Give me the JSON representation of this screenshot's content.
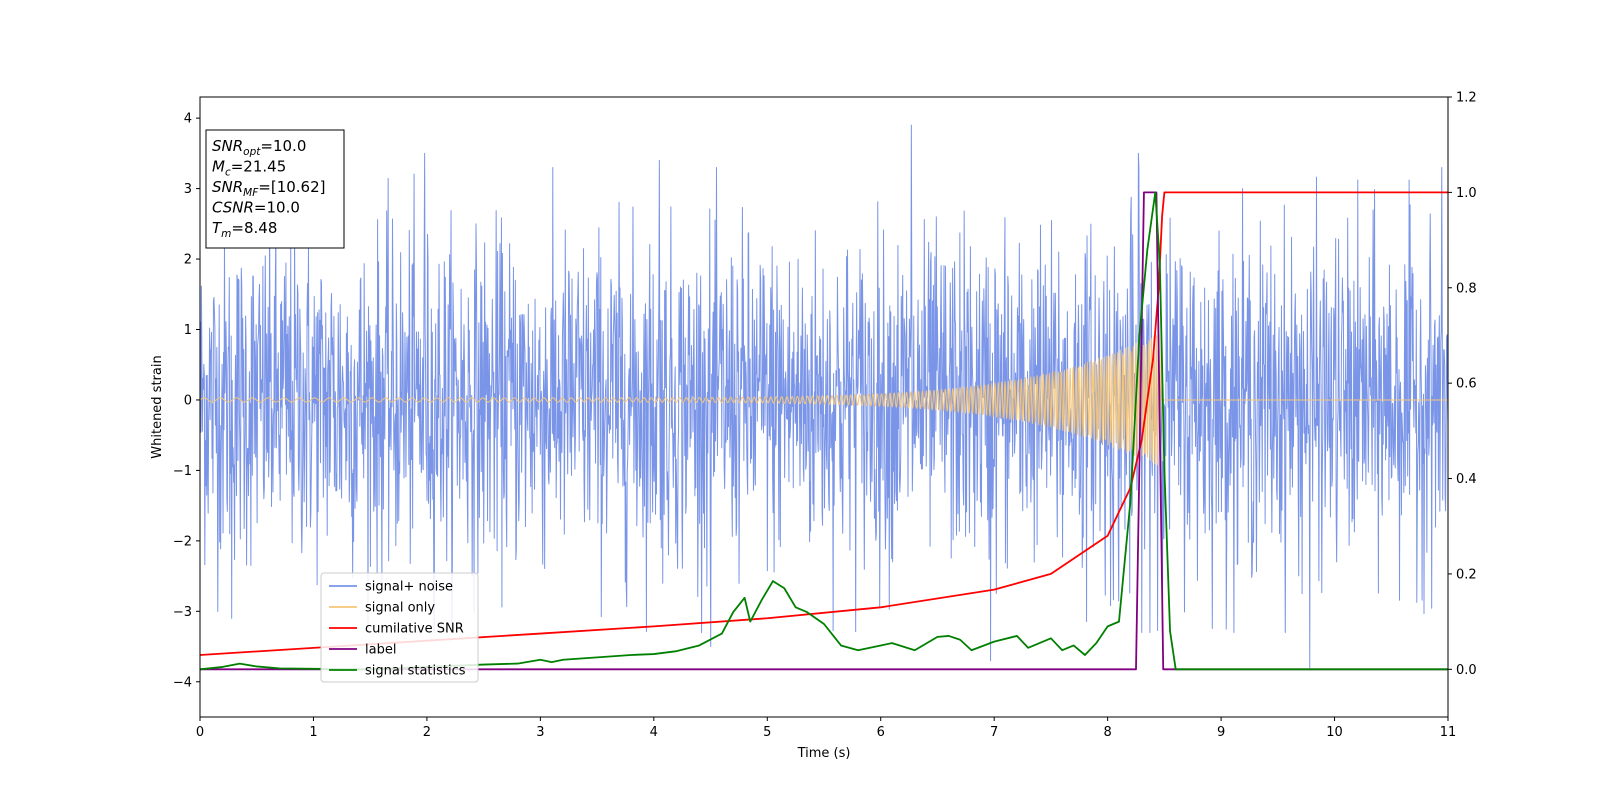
{
  "chart_data": {
    "type": "line",
    "xlabel": "Time (s)",
    "ylabel": "Whitened strain",
    "xlim": [
      0,
      11
    ],
    "ylim": [
      -4.5,
      4.3
    ],
    "y2lim": [
      -0.1,
      1.2
    ],
    "xticks": [
      0,
      1,
      2,
      3,
      4,
      5,
      6,
      7,
      8,
      9,
      10,
      11
    ],
    "yticks": [
      -4,
      -3,
      -2,
      -1,
      0,
      1,
      2,
      3,
      4
    ],
    "y2ticks": [
      0.0,
      0.2,
      0.4,
      0.6,
      0.8,
      1.0,
      1.2
    ],
    "grid": false,
    "legend_position": "lower-left",
    "annotation_lines": [
      {
        "base": "SNR",
        "sub": "opt",
        "value": "=10.0"
      },
      {
        "base": "M",
        "sub": "c",
        "value": "=21.45"
      },
      {
        "base": "SNR",
        "sub": "MF",
        "value": "=[10.62]"
      },
      {
        "base": "CSNR",
        "sub": "",
        "value": "=10.0"
      },
      {
        "base": "T",
        "sub": "m",
        "value": "=8.48"
      }
    ],
    "series": [
      {
        "name": "signal+ noise",
        "axis": "left",
        "color": "#7a95e8",
        "description_kind": "noise",
        "noise_std": 1.15,
        "peaks": [
          [
            1.98,
            3.5
          ],
          [
            4.05,
            3.4
          ],
          [
            6.27,
            3.9
          ],
          [
            8.27,
            3.5
          ],
          [
            9.78,
            -3.8
          ],
          [
            6.97,
            -3.7
          ],
          [
            0.28,
            -3.1
          ],
          [
            4.5,
            -3.5
          ]
        ]
      },
      {
        "name": "signal only",
        "axis": "left",
        "color": "#f5c67a",
        "chirp": {
          "t_merge": 8.48,
          "amp_start": 0.03,
          "amp_end": 1.0,
          "freq_start": 14,
          "freq_end": 40
        }
      },
      {
        "name": "cumilative SNR",
        "axis": "right",
        "color": "#ff0000",
        "x": [
          0,
          1,
          2,
          3,
          4,
          5,
          6,
          7,
          7.5,
          8,
          8.2,
          8.3,
          8.4,
          8.45,
          8.48,
          8.5,
          9,
          10,
          11
        ],
        "y": [
          0.03,
          0.045,
          0.06,
          0.075,
          0.09,
          0.107,
          0.13,
          0.167,
          0.2,
          0.28,
          0.38,
          0.48,
          0.65,
          0.8,
          0.95,
          1.0,
          1.0,
          1.0,
          1.0
        ]
      },
      {
        "name": "label",
        "axis": "right",
        "color": "#800080",
        "x": [
          0,
          8.25,
          8.32,
          8.43,
          8.49,
          11
        ],
        "y": [
          0.0,
          0.0,
          1.0,
          1.0,
          0.0,
          0.0
        ]
      },
      {
        "name": "signal statistics",
        "axis": "right",
        "color": "#008000",
        "x": [
          0,
          0.2,
          0.35,
          0.5,
          0.7,
          1.0,
          1.5,
          2.0,
          2.5,
          2.8,
          3.0,
          3.1,
          3.2,
          3.5,
          3.8,
          4.0,
          4.2,
          4.4,
          4.6,
          4.7,
          4.8,
          4.85,
          4.95,
          5.05,
          5.15,
          5.25,
          5.35,
          5.5,
          5.65,
          5.8,
          6.0,
          6.1,
          6.3,
          6.5,
          6.6,
          6.7,
          6.8,
          7.0,
          7.2,
          7.3,
          7.4,
          7.5,
          7.6,
          7.7,
          7.8,
          7.9,
          8.0,
          8.1,
          8.2,
          8.28,
          8.35,
          8.42,
          8.46,
          8.5,
          8.55,
          8.6,
          9,
          10,
          11
        ],
        "y": [
          0.0,
          0.005,
          0.012,
          0.006,
          0.002,
          0.001,
          0.0,
          0.005,
          0.01,
          0.012,
          0.02,
          0.015,
          0.02,
          0.025,
          0.03,
          0.032,
          0.038,
          0.05,
          0.075,
          0.12,
          0.15,
          0.1,
          0.145,
          0.185,
          0.17,
          0.13,
          0.12,
          0.095,
          0.05,
          0.04,
          0.05,
          0.055,
          0.04,
          0.068,
          0.07,
          0.062,
          0.04,
          0.058,
          0.07,
          0.045,
          0.055,
          0.065,
          0.04,
          0.05,
          0.03,
          0.055,
          0.09,
          0.1,
          0.35,
          0.7,
          0.88,
          1.0,
          0.85,
          0.42,
          0.08,
          0.0,
          0.0,
          0.0,
          0.0
        ]
      }
    ]
  }
}
